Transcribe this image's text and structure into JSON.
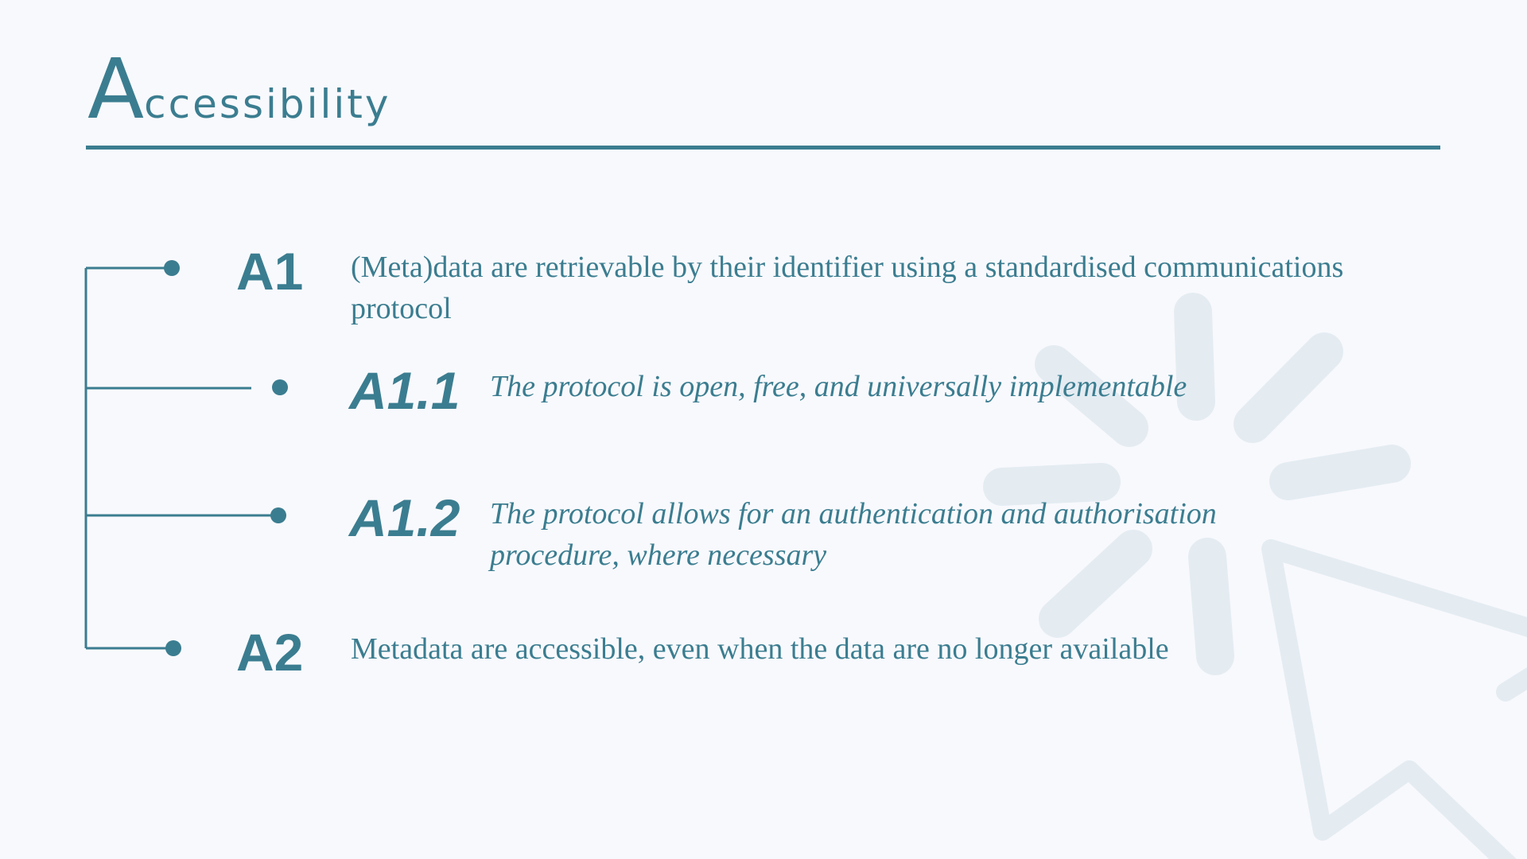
{
  "colors": {
    "accent": "#3b7d90",
    "background": "#f8f9fd",
    "watermark": "#e4ecf2"
  },
  "slide": {
    "title_initial": "A",
    "title_rest": "ccessibility"
  },
  "watermark": {
    "icon": "cursor-click-icon"
  },
  "items": [
    {
      "code": "A1",
      "text": "(Meta)data are retrievable by their identifier using a standardised communications protocol"
    },
    {
      "code": "A1.1",
      "text": "The protocol is open, free, and universally implementable"
    },
    {
      "code": "A1.2",
      "text": "The protocol allows for an authentication and authorisation procedure, where necessary"
    },
    {
      "code": "A2",
      "text": "Metadata are accessible, even when the data are no longer available"
    }
  ]
}
